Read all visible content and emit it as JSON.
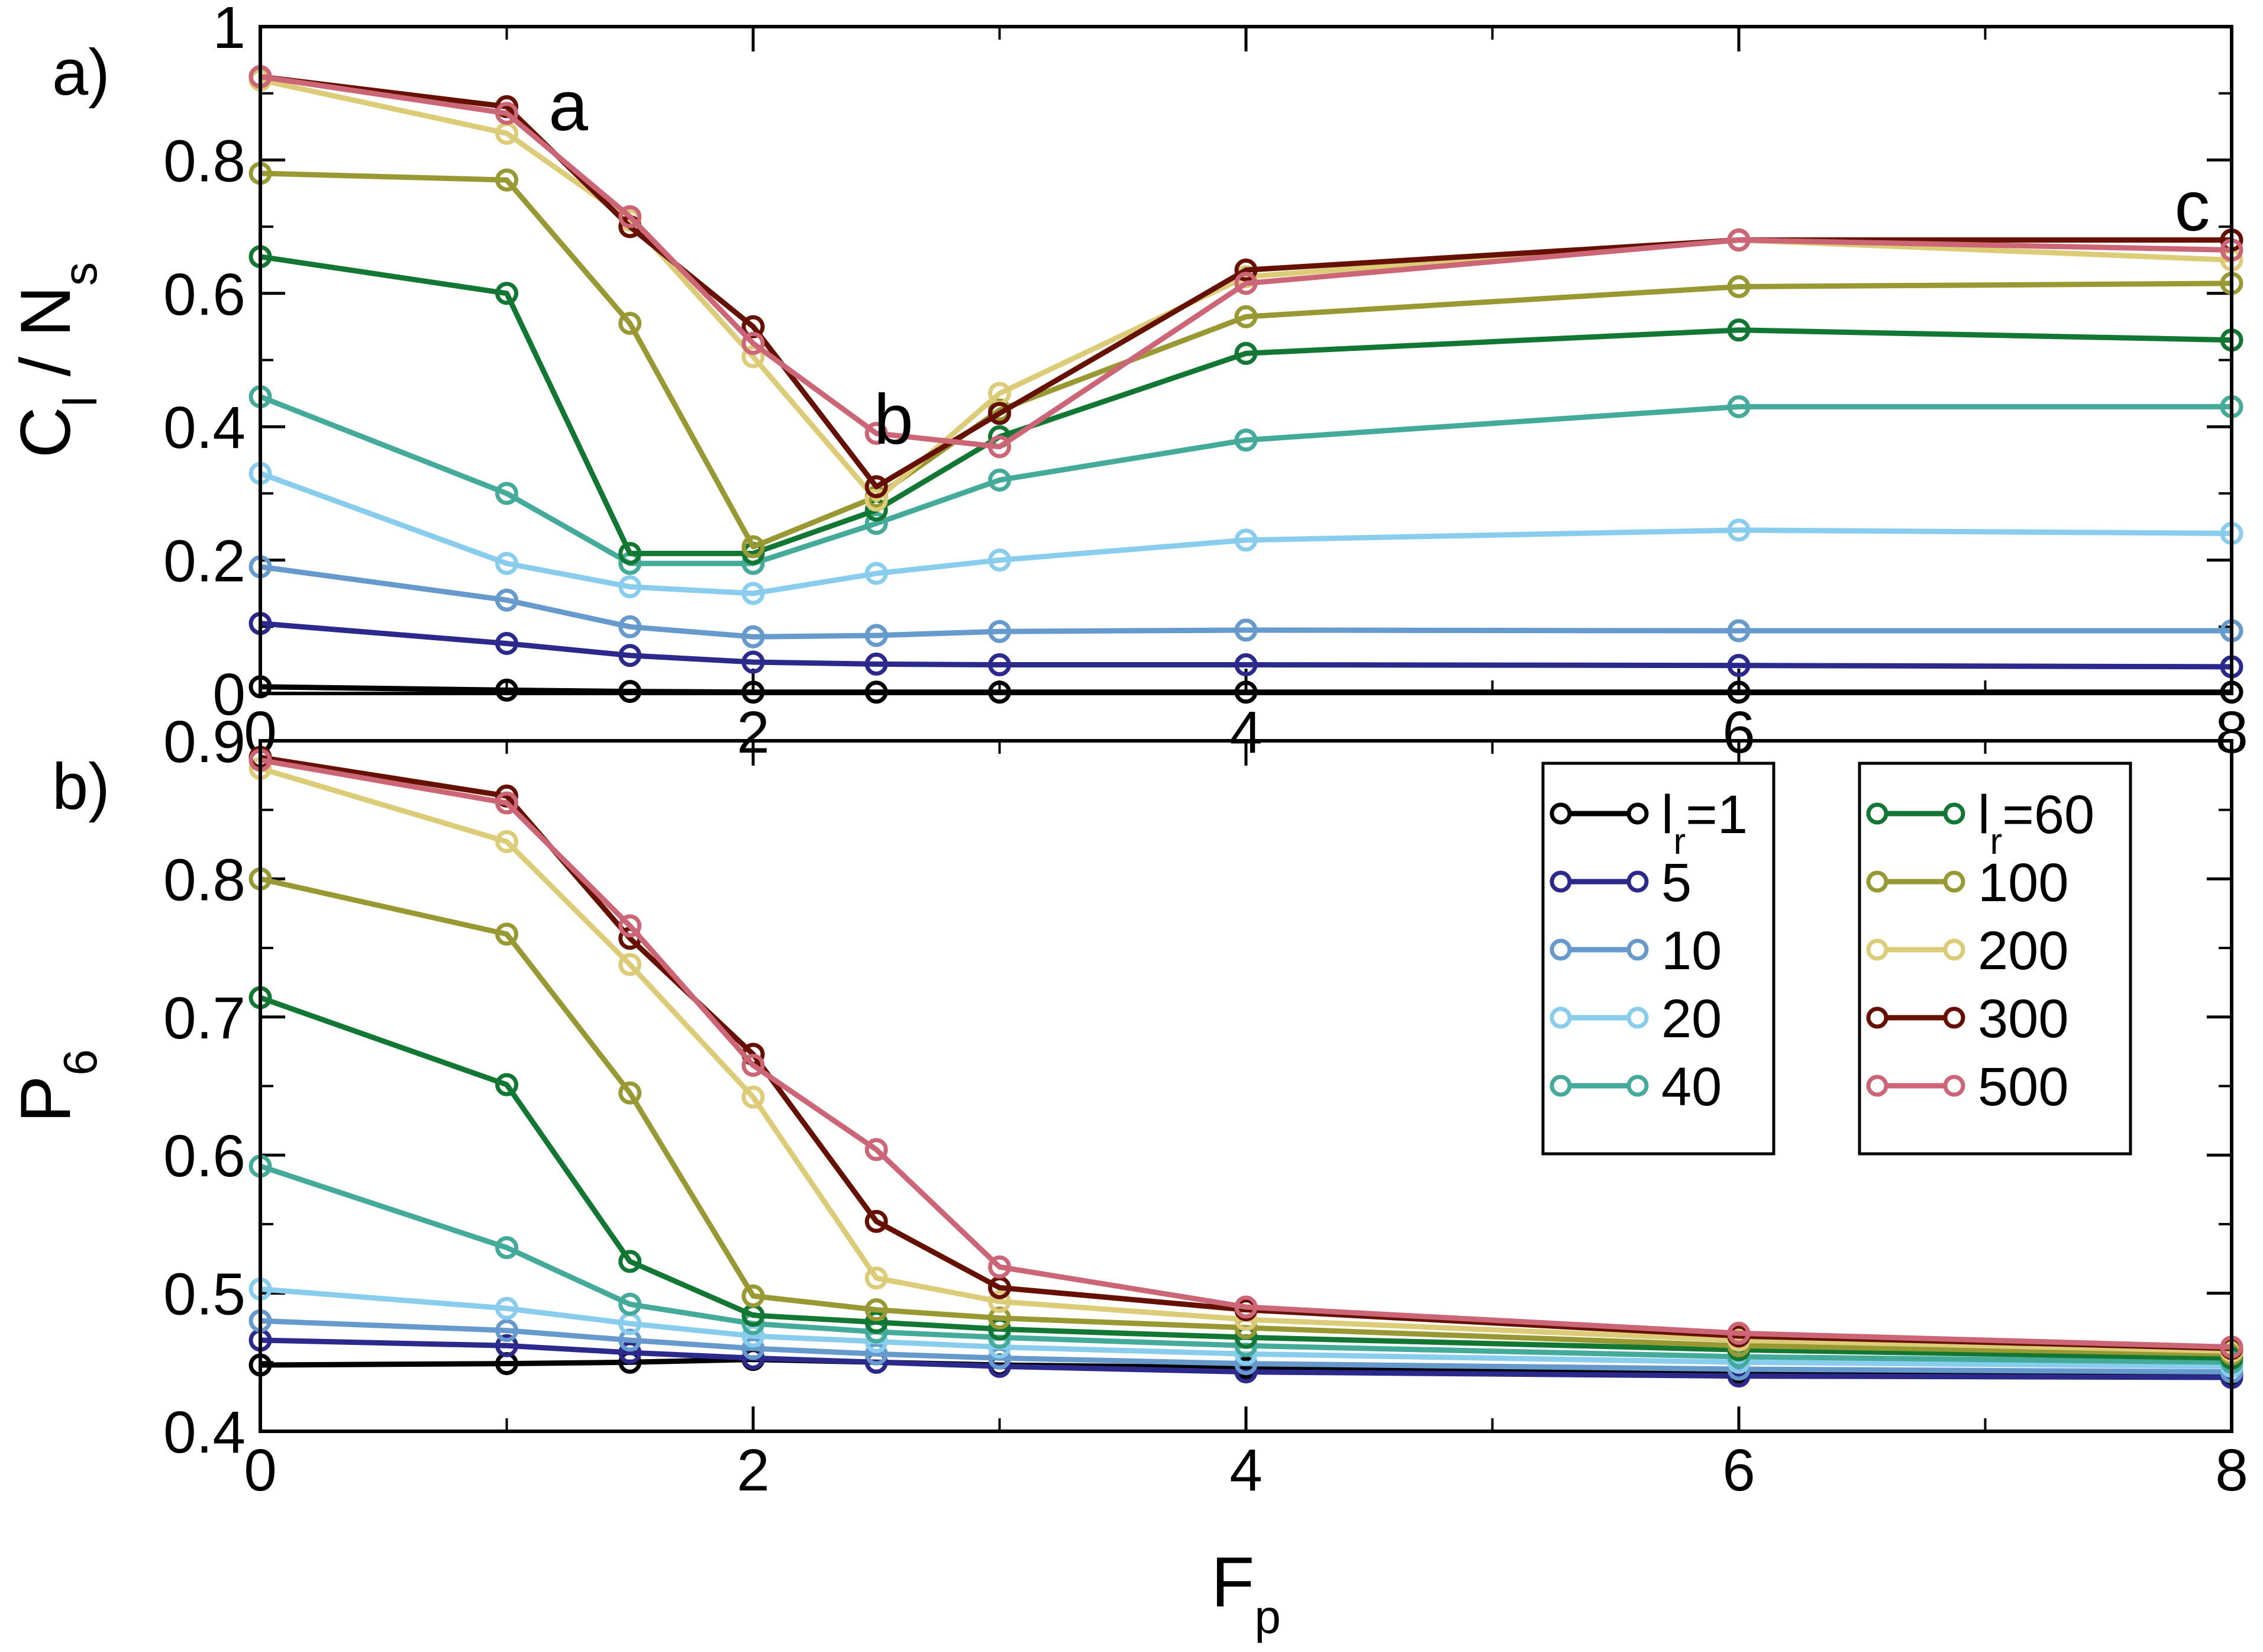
{
  "chart_data": [
    {
      "type": "line",
      "panel_label": "a)",
      "ylabel": "C",
      "ylabel_sub": "l",
      "ylabel_rest": " / N",
      "ylabel_rest_sub": "s",
      "xlim": [
        0,
        8
      ],
      "ylim": [
        0,
        1
      ],
      "x_ticks": [
        0,
        2,
        4,
        6,
        8
      ],
      "x_tick_labels": [
        "0",
        "2",
        "4",
        "6",
        "8"
      ],
      "y_ticks": [
        0,
        0.2,
        0.4,
        0.6,
        0.8,
        1
      ],
      "y_tick_labels": [
        "0",
        "0.2",
        "0.4",
        "0.6",
        "0.8",
        "1"
      ],
      "annotations": [
        {
          "text": "a",
          "x": 1.25,
          "y": 0.88
        },
        {
          "text": "b",
          "x": 2.57,
          "y": 0.41
        },
        {
          "text": "c",
          "x": 7.84,
          "y": 0.73
        }
      ],
      "x": [
        0,
        1,
        1.5,
        2,
        2.5,
        3,
        4,
        6,
        8
      ],
      "series": [
        {
          "name": "1",
          "color": "#000000",
          "values": [
            0.01,
            0.005,
            0.003,
            0.002,
            0.002,
            0.002,
            0.002,
            0.002,
            0.002
          ]
        },
        {
          "name": "5",
          "color": "#2b2a8c",
          "values": [
            0.105,
            0.075,
            0.057,
            0.047,
            0.044,
            0.043,
            0.043,
            0.042,
            0.04
          ]
        },
        {
          "name": "10",
          "color": "#6699cc",
          "values": [
            0.19,
            0.14,
            0.1,
            0.085,
            0.087,
            0.093,
            0.095,
            0.094,
            0.094
          ]
        },
        {
          "name": "20",
          "color": "#88ccee",
          "values": [
            0.33,
            0.195,
            0.16,
            0.15,
            0.18,
            0.2,
            0.23,
            0.245,
            0.24
          ]
        },
        {
          "name": "40",
          "color": "#44aa99",
          "values": [
            0.445,
            0.3,
            0.195,
            0.195,
            0.255,
            0.32,
            0.38,
            0.43,
            0.43
          ]
        },
        {
          "name": "60",
          "color": "#117733",
          "values": [
            0.655,
            0.6,
            0.21,
            0.21,
            0.275,
            0.385,
            0.51,
            0.545,
            0.53
          ]
        },
        {
          "name": "100",
          "color": "#999933",
          "values": [
            0.78,
            0.77,
            0.555,
            0.22,
            0.295,
            0.425,
            0.565,
            0.61,
            0.615
          ]
        },
        {
          "name": "200",
          "color": "#ddcc77",
          "values": [
            0.92,
            0.84,
            0.71,
            0.505,
            0.29,
            0.45,
            0.625,
            0.68,
            0.65
          ]
        },
        {
          "name": "300",
          "color": "#661100",
          "values": [
            0.925,
            0.88,
            0.7,
            0.55,
            0.31,
            0.42,
            0.635,
            0.68,
            0.68
          ]
        },
        {
          "name": "500",
          "color": "#cc6677",
          "values": [
            0.925,
            0.87,
            0.715,
            0.525,
            0.39,
            0.37,
            0.615,
            0.68,
            0.665
          ]
        }
      ]
    },
    {
      "type": "line",
      "panel_label": "b)",
      "ylabel": "P",
      "ylabel_sub": "6",
      "xlabel": "F",
      "xlabel_sub": "p",
      "xlim": [
        0,
        8
      ],
      "ylim": [
        0.4,
        0.9
      ],
      "x_ticks": [
        0,
        2,
        4,
        6,
        8
      ],
      "x_tick_labels": [
        "0",
        "2",
        "4",
        "6",
        "8"
      ],
      "y_ticks": [
        0.4,
        0.5,
        0.6,
        0.7,
        0.8,
        0.9
      ],
      "y_tick_labels": [
        "0.4",
        "0.5",
        "0.6",
        "0.7",
        "0.8",
        "0.9"
      ],
      "x": [
        0,
        1,
        1.5,
        2,
        2.5,
        3,
        4,
        6,
        8
      ],
      "series": [
        {
          "name": "1",
          "color": "#000000",
          "values": [
            0.448,
            0.449,
            0.45,
            0.452,
            0.45,
            0.448,
            0.446,
            0.443,
            0.441
          ]
        },
        {
          "name": "5",
          "color": "#2b2a8c",
          "values": [
            0.466,
            0.462,
            0.457,
            0.453,
            0.45,
            0.447,
            0.443,
            0.44,
            0.439
          ]
        },
        {
          "name": "10",
          "color": "#6699cc",
          "values": [
            0.48,
            0.473,
            0.466,
            0.46,
            0.456,
            0.453,
            0.449,
            0.445,
            0.443
          ]
        },
        {
          "name": "20",
          "color": "#88ccee",
          "values": [
            0.503,
            0.489,
            0.478,
            0.469,
            0.465,
            0.461,
            0.456,
            0.45,
            0.447
          ]
        },
        {
          "name": "40",
          "color": "#44aa99",
          "values": [
            0.592,
            0.533,
            0.492,
            0.478,
            0.472,
            0.468,
            0.462,
            0.454,
            0.45
          ]
        },
        {
          "name": "60",
          "color": "#117733",
          "values": [
            0.714,
            0.651,
            0.523,
            0.484,
            0.479,
            0.474,
            0.468,
            0.459,
            0.453
          ]
        },
        {
          "name": "100",
          "color": "#999933",
          "values": [
            0.8,
            0.76,
            0.645,
            0.498,
            0.488,
            0.482,
            0.475,
            0.462,
            0.456
          ]
        },
        {
          "name": "200",
          "color": "#ddcc77",
          "values": [
            0.88,
            0.827,
            0.738,
            0.642,
            0.511,
            0.494,
            0.481,
            0.466,
            0.458
          ]
        },
        {
          "name": "300",
          "color": "#661100",
          "values": [
            0.888,
            0.86,
            0.757,
            0.673,
            0.552,
            0.504,
            0.488,
            0.469,
            0.46
          ]
        },
        {
          "name": "500",
          "color": "#cc6677",
          "values": [
            0.886,
            0.855,
            0.766,
            0.665,
            0.604,
            0.519,
            0.49,
            0.471,
            0.461
          ]
        }
      ]
    }
  ],
  "legend": {
    "left": [
      {
        "label": "l",
        "sub": "r",
        "suffix": "=1",
        "color": "#000000"
      },
      {
        "label": "5",
        "color": "#2b2a8c"
      },
      {
        "label": "10",
        "color": "#6699cc"
      },
      {
        "label": "20",
        "color": "#88ccee"
      },
      {
        "label": "40",
        "color": "#44aa99"
      }
    ],
    "right": [
      {
        "label": "l",
        "sub": "r",
        "suffix": "=60",
        "color": "#117733"
      },
      {
        "label": "100",
        "color": "#999933"
      },
      {
        "label": "200",
        "color": "#ddcc77"
      },
      {
        "label": "300",
        "color": "#661100"
      },
      {
        "label": "500",
        "color": "#cc6677"
      }
    ]
  }
}
